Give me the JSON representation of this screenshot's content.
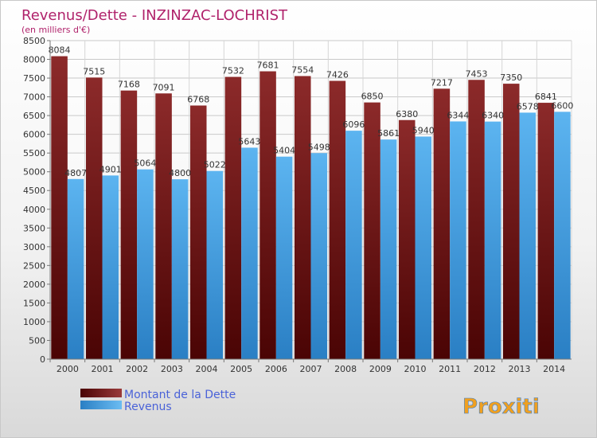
{
  "chart_data": {
    "type": "bar",
    "title": "Revenus/Dette - INZINZAC-LOCHRIST",
    "subtitle": "(en milliers d'€)",
    "categories": [
      "2000",
      "2001",
      "2002",
      "2003",
      "2004",
      "2005",
      "2006",
      "2007",
      "2008",
      "2009",
      "2010",
      "2011",
      "2012",
      "2013",
      "2014"
    ],
    "series": [
      {
        "name": "Montant de la Dette",
        "color": "#7a1c1c",
        "values": [
          8084,
          7515,
          7168,
          7091,
          6768,
          7532,
          7681,
          7554,
          7426,
          6850,
          6380,
          7217,
          7453,
          7350,
          6841
        ]
      },
      {
        "name": "Revenus",
        "color": "#4aa3e6",
        "values": [
          4807,
          4901,
          5064,
          4800,
          5022,
          5643,
          5404,
          5498,
          6096,
          5861,
          5940,
          6344,
          6340,
          6578,
          6600
        ]
      }
    ],
    "ylim": [
      0,
      8500
    ],
    "yticks": [
      0,
      500,
      1000,
      1500,
      2000,
      2500,
      3000,
      3500,
      4000,
      4500,
      5000,
      5500,
      6000,
      6500,
      7000,
      7500,
      8000,
      8500
    ],
    "grid": true,
    "legend_placement": "bottom-left"
  },
  "brand": {
    "logo_text": "Proxiti"
  }
}
